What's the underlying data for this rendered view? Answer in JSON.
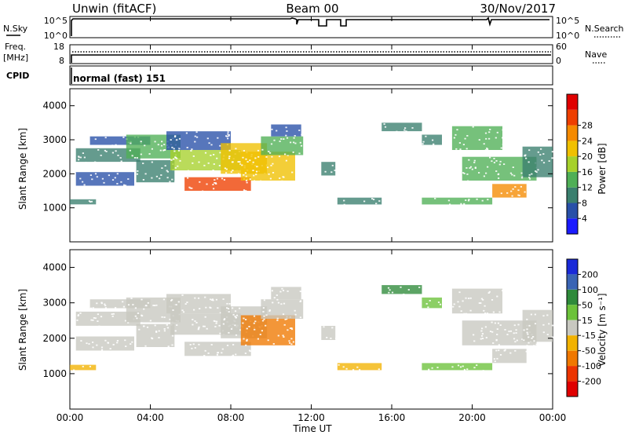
{
  "header": {
    "station": "Unwin (fitACF)",
    "beam": "Beam 00",
    "date": "30/Nov/2017"
  },
  "noise_panel": {
    "left_label": "N.Sky",
    "left_ticks": [
      "10^5",
      "10^0"
    ],
    "right_label": "N.Search",
    "right_ticks": [
      "10^5",
      "10^0"
    ]
  },
  "freq_panel": {
    "left_label_top": "Freq.",
    "left_label_unit": "[MHz]",
    "left_ticks": [
      "18",
      "8"
    ],
    "right_label": "Nave",
    "right_ticks": [
      "60",
      "0"
    ]
  },
  "cpid_panel": {
    "label": "CPID",
    "mode": "normal (fast) 151"
  },
  "x_axis": {
    "title": "Time UT",
    "ticks": [
      "00:00",
      "04:00",
      "08:00",
      "12:00",
      "16:00",
      "20:00",
      "00:00"
    ]
  },
  "chart_data": [
    {
      "type": "heatmap",
      "name": "power",
      "ylabel": "Slant Range [km]",
      "xlabel": "",
      "xlim": [
        0,
        24
      ],
      "ylim": [
        0,
        4500
      ],
      "y_ticks": [
        "1000",
        "2000",
        "3000",
        "4000"
      ],
      "colorbar": {
        "label": "Power [dB]",
        "ticks": [
          "4",
          "8",
          "12",
          "16",
          "20",
          "24",
          "28"
        ],
        "range": [
          0,
          32
        ],
        "colors": [
          "#1a1aff",
          "#2850a8",
          "#3a7f6e",
          "#4faf56",
          "#a6d12b",
          "#f0c000",
          "#f58a00",
          "#ee3f00",
          "#e00000"
        ]
      },
      "regions": [
        {
          "t": [
            0.0,
            1.3
          ],
          "r": [
            1100,
            1250
          ],
          "v": 8
        },
        {
          "t": [
            0.3,
            3.2
          ],
          "r": [
            1650,
            2050
          ],
          "v": 7
        },
        {
          "t": [
            0.3,
            3.5
          ],
          "r": [
            2350,
            2750
          ],
          "v": 9
        },
        {
          "t": [
            1.0,
            4.0
          ],
          "r": [
            2850,
            3100
          ],
          "v": 6
        },
        {
          "t": [
            2.8,
            5.5
          ],
          "r": [
            2450,
            3150
          ],
          "v": 13
        },
        {
          "t": [
            3.3,
            5.2
          ],
          "r": [
            1750,
            2400
          ],
          "v": 10
        },
        {
          "t": [
            4.8,
            8.0
          ],
          "r": [
            2700,
            3250
          ],
          "v": 7
        },
        {
          "t": [
            5.0,
            8.5
          ],
          "r": [
            2100,
            2700
          ],
          "v": 15
        },
        {
          "t": [
            5.7,
            9.0
          ],
          "r": [
            1500,
            1900
          ],
          "v": 27
        },
        {
          "t": [
            7.5,
            9.8
          ],
          "r": [
            2000,
            2900
          ],
          "v": 18
        },
        {
          "t": [
            8.5,
            11.2
          ],
          "r": [
            1800,
            2650
          ],
          "v": 21
        },
        {
          "t": [
            9.5,
            11.6
          ],
          "r": [
            2550,
            3100
          ],
          "v": 11
        },
        {
          "t": [
            10.0,
            11.5
          ],
          "r": [
            3100,
            3450
          ],
          "v": 6
        },
        {
          "t": [
            12.5,
            13.2
          ],
          "r": [
            1950,
            2350
          ],
          "v": 8
        },
        {
          "t": [
            13.3,
            15.5
          ],
          "r": [
            1100,
            1300
          ],
          "v": 9
        },
        {
          "t": [
            15.5,
            17.5
          ],
          "r": [
            3250,
            3500
          ],
          "v": 10
        },
        {
          "t": [
            17.5,
            18.5
          ],
          "r": [
            2850,
            3150
          ],
          "v": 9
        },
        {
          "t": [
            17.5,
            21.0
          ],
          "r": [
            1100,
            1300
          ],
          "v": 11
        },
        {
          "t": [
            19.0,
            21.5
          ],
          "r": [
            2700,
            3400
          ],
          "v": 12
        },
        {
          "t": [
            19.5,
            23.2
          ],
          "r": [
            1800,
            2500
          ],
          "v": 14
        },
        {
          "t": [
            21.0,
            22.7
          ],
          "r": [
            1300,
            1700
          ],
          "v": 24
        },
        {
          "t": [
            22.5,
            24.0
          ],
          "r": [
            1900,
            2800
          ],
          "v": 8
        }
      ]
    },
    {
      "type": "heatmap",
      "name": "velocity",
      "ylabel": "Slant Range [km]",
      "xlabel": "Time UT",
      "xlim": [
        0,
        24
      ],
      "ylim": [
        0,
        4500
      ],
      "y_ticks": [
        "1000",
        "2000",
        "3000",
        "4000"
      ],
      "colorbar": {
        "label": "Velocity [m s⁻¹]",
        "ticks": [
          "200",
          "100",
          "50",
          "15",
          "-15",
          "-50",
          "-100",
          "-200"
        ],
        "colors": [
          "#1a2ad8",
          "#3a64b4",
          "#2e8a3a",
          "#6cc23a",
          "#c8c8c0",
          "#f2b200",
          "#f07800",
          "#ec3400",
          "#e00000"
        ]
      },
      "regions": [
        {
          "t": [
            0.0,
            1.3
          ],
          "r": [
            1100,
            1250
          ],
          "v": -40
        },
        {
          "t": [
            0.3,
            3.2
          ],
          "r": [
            1650,
            2050
          ],
          "v": 0
        },
        {
          "t": [
            0.3,
            3.5
          ],
          "r": [
            2350,
            2750
          ],
          "v": 5
        },
        {
          "t": [
            1.0,
            4.0
          ],
          "r": [
            2850,
            3100
          ],
          "v": 0
        },
        {
          "t": [
            2.8,
            5.5
          ],
          "r": [
            2450,
            3150
          ],
          "v": 3
        },
        {
          "t": [
            3.3,
            5.2
          ],
          "r": [
            1750,
            2400
          ],
          "v": -5
        },
        {
          "t": [
            4.8,
            8.0
          ],
          "r": [
            2700,
            3250
          ],
          "v": 0
        },
        {
          "t": [
            5.0,
            8.5
          ],
          "r": [
            2100,
            2700
          ],
          "v": -8
        },
        {
          "t": [
            5.7,
            9.0
          ],
          "r": [
            1500,
            1900
          ],
          "v": -10
        },
        {
          "t": [
            7.5,
            9.8
          ],
          "r": [
            2000,
            2900
          ],
          "v": 4
        },
        {
          "t": [
            8.5,
            11.2
          ],
          "r": [
            1800,
            2650
          ],
          "v": -90
        },
        {
          "t": [
            9.5,
            11.6
          ],
          "r": [
            2550,
            3100
          ],
          "v": 0
        },
        {
          "t": [
            10.0,
            11.5
          ],
          "r": [
            3100,
            3450
          ],
          "v": 10
        },
        {
          "t": [
            12.5,
            13.2
          ],
          "r": [
            1950,
            2350
          ],
          "v": 0
        },
        {
          "t": [
            13.3,
            15.5
          ],
          "r": [
            1100,
            1300
          ],
          "v": -45
        },
        {
          "t": [
            15.5,
            17.5
          ],
          "r": [
            3250,
            3500
          ],
          "v": 60
        },
        {
          "t": [
            17.5,
            18.5
          ],
          "r": [
            2850,
            3150
          ],
          "v": 40
        },
        {
          "t": [
            17.5,
            21.0
          ],
          "r": [
            1100,
            1300
          ],
          "v": 30
        },
        {
          "t": [
            19.0,
            21.5
          ],
          "r": [
            2700,
            3400
          ],
          "v": 5
        },
        {
          "t": [
            19.5,
            23.2
          ],
          "r": [
            1800,
            2500
          ],
          "v": 0
        },
        {
          "t": [
            21.0,
            22.7
          ],
          "r": [
            1300,
            1700
          ],
          "v": -2
        },
        {
          "t": [
            22.5,
            24.0
          ],
          "r": [
            1900,
            2800
          ],
          "v": 3
        }
      ]
    }
  ]
}
